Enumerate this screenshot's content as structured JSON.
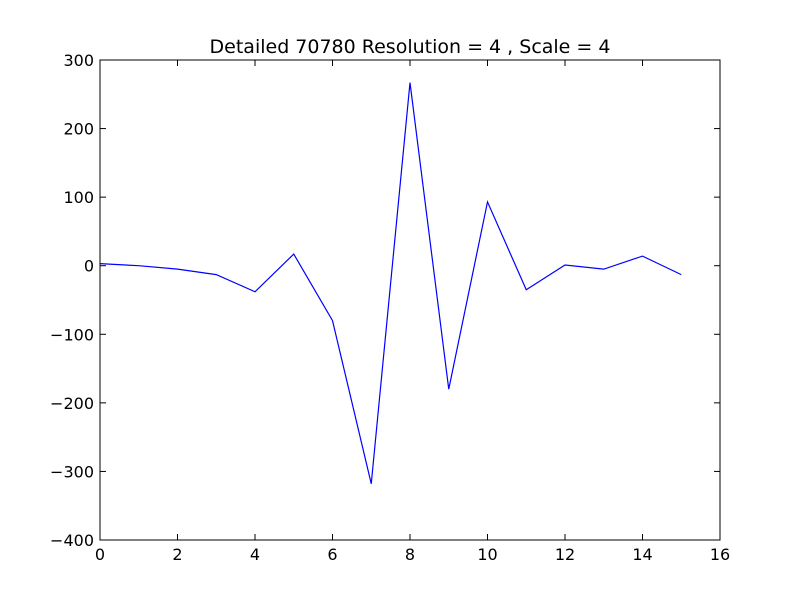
{
  "chart_data": {
    "type": "line",
    "title": "Detailed 70780 Resolution = 4 , Scale = 4",
    "xlabel": "",
    "ylabel": "",
    "xlim": [
      0,
      16
    ],
    "ylim": [
      -400,
      300
    ],
    "x_ticks": [
      0,
      2,
      4,
      6,
      8,
      10,
      12,
      14,
      16
    ],
    "y_ticks": [
      300,
      200,
      100,
      0,
      -100,
      -200,
      -300,
      -400
    ],
    "x_tick_labels": [
      "0",
      "2",
      "4",
      "6",
      "8",
      "10",
      "12",
      "14",
      "16"
    ],
    "y_tick_labels": [
      "300",
      "200",
      "100",
      "0",
      "−100",
      "−200",
      "−300",
      "−400"
    ],
    "grid": false,
    "series": [
      {
        "color": "#0000ff",
        "x": [
          0,
          1,
          2,
          3,
          4,
          5,
          6,
          7,
          8,
          9,
          10,
          11,
          12,
          13,
          14,
          15
        ],
        "y": [
          3,
          0,
          -5,
          -13,
          -38,
          17,
          -80,
          -318,
          267,
          -180,
          93,
          -35,
          1,
          -5,
          14,
          -13
        ]
      }
    ]
  }
}
